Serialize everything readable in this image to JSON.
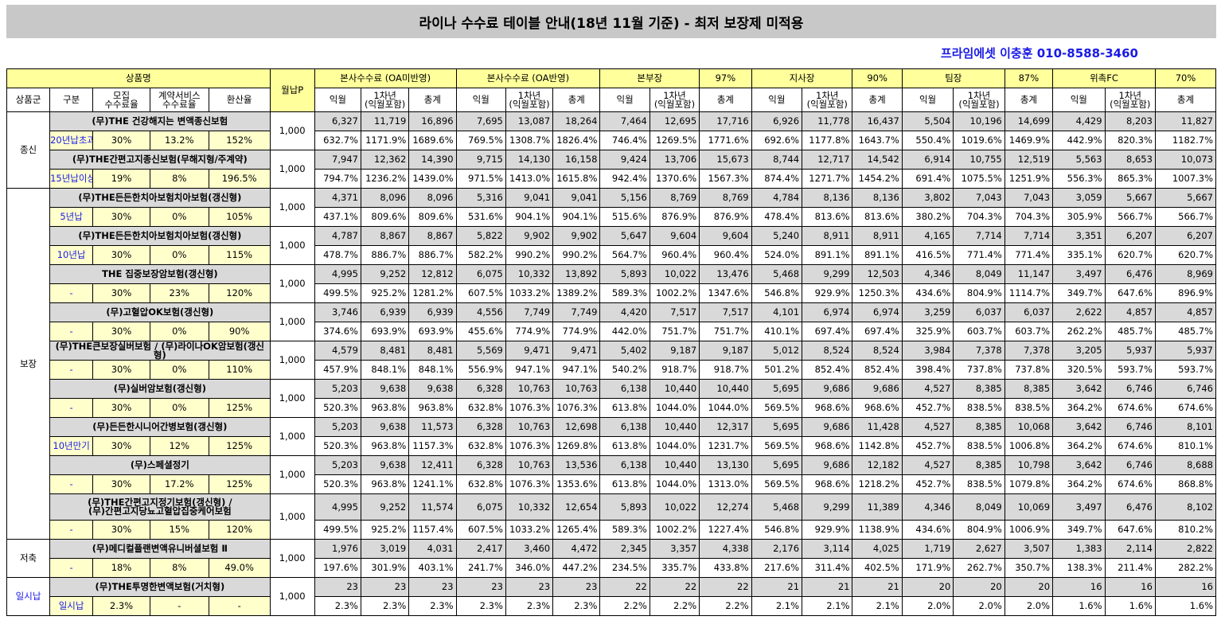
{
  "title": "라이나 수수료 테이블 안내(18년 11월 기준) - 최저 보장제 미적용",
  "contact": "프라임에셋 이충훈 010-8588-3460",
  "header": {
    "product": "상품명",
    "monthly": "월납P",
    "agents": [
      "본사수수료 (OA미반영)",
      "본사수수료 (OA반영)",
      "본부장",
      "지사장",
      "팀장",
      "위촉FC"
    ],
    "pcts": [
      "97%",
      "90%",
      "87%",
      "70%"
    ],
    "cols": [
      "상품군",
      "구분",
      "모집\n수수료율",
      "계약서비스\n수수료율",
      "환산율"
    ],
    "sub": [
      "익월",
      "1차년\n(익월포함)",
      "총계"
    ]
  },
  "groups": [
    {
      "name": "종신",
      "products": [
        {
          "name": "(무)THE 건강해지는 변액종신보험",
          "gubun": "20년납초과",
          "rate1": "30%",
          "rate2": "13.2%",
          "conv": "152%",
          "monthly": "1,000",
          "amounts": [
            "6,327",
            "11,719",
            "16,896",
            "7,695",
            "13,087",
            "18,264",
            "7,464",
            "12,695",
            "17,716",
            "6,926",
            "11,778",
            "16,437",
            "5,504",
            "10,196",
            "14,699",
            "4,429",
            "8,203",
            "11,827"
          ],
          "pcts": [
            "632.7%",
            "1171.9%",
            "1689.6%",
            "769.5%",
            "1308.7%",
            "1826.4%",
            "746.4%",
            "1269.5%",
            "1771.6%",
            "692.6%",
            "1177.8%",
            "1643.7%",
            "550.4%",
            "1019.6%",
            "1469.9%",
            "442.9%",
            "820.3%",
            "1182.7%"
          ]
        },
        {
          "name": "(무)THE간편고지종신보험(무해지형/주계약)",
          "gubun": "15년납이상",
          "rate1": "19%",
          "rate2": "8%",
          "conv": "196.5%",
          "monthly": "1,000",
          "amounts": [
            "7,947",
            "12,362",
            "14,390",
            "9,715",
            "14,130",
            "16,158",
            "9,424",
            "13,706",
            "15,673",
            "8,744",
            "12,717",
            "14,542",
            "6,914",
            "10,755",
            "12,519",
            "5,563",
            "8,653",
            "10,073"
          ],
          "pcts": [
            "794.7%",
            "1236.2%",
            "1439.0%",
            "971.5%",
            "1413.0%",
            "1615.8%",
            "942.4%",
            "1370.6%",
            "1567.3%",
            "874.4%",
            "1271.7%",
            "1454.2%",
            "691.4%",
            "1075.5%",
            "1251.9%",
            "556.3%",
            "865.3%",
            "1007.3%"
          ]
        }
      ]
    },
    {
      "name": "보장",
      "products": [
        {
          "name": "(무)THE든든한치아보험치아보험(갱신형)",
          "gubun": "5년납",
          "rate1": "30%",
          "rate2": "0%",
          "conv": "105%",
          "monthly": "1,000",
          "amounts": [
            "4,371",
            "8,096",
            "8,096",
            "5,316",
            "9,041",
            "9,041",
            "5,156",
            "8,769",
            "8,769",
            "4,784",
            "8,136",
            "8,136",
            "3,802",
            "7,043",
            "7,043",
            "3,059",
            "5,667",
            "5,667"
          ],
          "pcts": [
            "437.1%",
            "809.6%",
            "809.6%",
            "531.6%",
            "904.1%",
            "904.1%",
            "515.6%",
            "876.9%",
            "876.9%",
            "478.4%",
            "813.6%",
            "813.6%",
            "380.2%",
            "704.3%",
            "704.3%",
            "305.9%",
            "566.7%",
            "566.7%"
          ]
        },
        {
          "name": "(무)THE든든한치아보험치아보험(갱신형)",
          "gubun": "10년납",
          "rate1": "30%",
          "rate2": "0%",
          "conv": "115%",
          "monthly": "1,000",
          "amounts": [
            "4,787",
            "8,867",
            "8,867",
            "5,822",
            "9,902",
            "9,902",
            "5,647",
            "9,604",
            "9,604",
            "5,240",
            "8,911",
            "8,911",
            "4,165",
            "7,714",
            "7,714",
            "3,351",
            "6,207",
            "6,207"
          ],
          "pcts": [
            "478.7%",
            "886.7%",
            "886.7%",
            "582.2%",
            "990.2%",
            "990.2%",
            "564.7%",
            "960.4%",
            "960.4%",
            "524.0%",
            "891.1%",
            "891.1%",
            "416.5%",
            "771.4%",
            "771.4%",
            "335.1%",
            "620.7%",
            "620.7%"
          ]
        },
        {
          "name": "THE 집중보장암보험(갱신형)",
          "gubun": "-",
          "rate1": "30%",
          "rate2": "23%",
          "conv": "120%",
          "monthly": "1,000",
          "amounts": [
            "4,995",
            "9,252",
            "12,812",
            "6,075",
            "10,332",
            "13,892",
            "5,893",
            "10,022",
            "13,476",
            "5,468",
            "9,299",
            "12,503",
            "4,346",
            "8,049",
            "11,147",
            "3,497",
            "6,476",
            "8,969"
          ],
          "pcts": [
            "499.5%",
            "925.2%",
            "1281.2%",
            "607.5%",
            "1033.2%",
            "1389.2%",
            "589.3%",
            "1002.2%",
            "1347.6%",
            "546.8%",
            "929.9%",
            "1250.3%",
            "434.6%",
            "804.9%",
            "1114.7%",
            "349.7%",
            "647.6%",
            "896.9%"
          ]
        },
        {
          "name": "(무)고혈압OK보험(갱신형)",
          "gubun": "-",
          "rate1": "30%",
          "rate2": "0%",
          "conv": "90%",
          "monthly": "1,000",
          "amounts": [
            "3,746",
            "6,939",
            "6,939",
            "4,556",
            "7,749",
            "7,749",
            "4,420",
            "7,517",
            "7,517",
            "4,101",
            "6,974",
            "6,974",
            "3,259",
            "6,037",
            "6,037",
            "2,622",
            "4,857",
            "4,857"
          ],
          "pcts": [
            "374.6%",
            "693.9%",
            "693.9%",
            "455.6%",
            "774.9%",
            "774.9%",
            "442.0%",
            "751.7%",
            "751.7%",
            "410.1%",
            "697.4%",
            "697.4%",
            "325.9%",
            "603.7%",
            "603.7%",
            "262.2%",
            "485.7%",
            "485.7%"
          ]
        },
        {
          "name": "(무)THE큰보장실버보험 / (무)라이나OK암보험(갱신형)",
          "gubun": "-",
          "rate1": "30%",
          "rate2": "0%",
          "conv": "110%",
          "monthly": "1,000",
          "amounts": [
            "4,579",
            "8,481",
            "8,481",
            "5,569",
            "9,471",
            "9,471",
            "5,402",
            "9,187",
            "9,187",
            "5,012",
            "8,524",
            "8,524",
            "3,984",
            "7,378",
            "7,378",
            "3,205",
            "5,937",
            "5,937"
          ],
          "pcts": [
            "457.9%",
            "848.1%",
            "848.1%",
            "556.9%",
            "947.1%",
            "947.1%",
            "540.2%",
            "918.7%",
            "918.7%",
            "501.2%",
            "852.4%",
            "852.4%",
            "398.4%",
            "737.8%",
            "737.8%",
            "320.5%",
            "593.7%",
            "593.7%"
          ]
        },
        {
          "name": "(무)실버암보험(갱신형)",
          "gubun": "-",
          "rate1": "30%",
          "rate2": "0%",
          "conv": "125%",
          "monthly": "1,000",
          "amounts": [
            "5,203",
            "9,638",
            "9,638",
            "6,328",
            "10,763",
            "10,763",
            "6,138",
            "10,440",
            "10,440",
            "5,695",
            "9,686",
            "9,686",
            "4,527",
            "8,385",
            "8,385",
            "3,642",
            "6,746",
            "6,746"
          ],
          "pcts": [
            "520.3%",
            "963.8%",
            "963.8%",
            "632.8%",
            "1076.3%",
            "1076.3%",
            "613.8%",
            "1044.0%",
            "1044.0%",
            "569.5%",
            "968.6%",
            "968.6%",
            "452.7%",
            "838.5%",
            "838.5%",
            "364.2%",
            "674.6%",
            "674.6%"
          ]
        },
        {
          "name": "(무)든든한시니어간병보험(갱신형)",
          "gubun": "10년만기",
          "rate1": "30%",
          "rate2": "12%",
          "conv": "125%",
          "monthly": "1,000",
          "amounts": [
            "5,203",
            "9,638",
            "11,573",
            "6,328",
            "10,763",
            "12,698",
            "6,138",
            "10,440",
            "12,317",
            "5,695",
            "9,686",
            "11,428",
            "4,527",
            "8,385",
            "10,068",
            "3,642",
            "6,746",
            "8,101"
          ],
          "pcts": [
            "520.3%",
            "963.8%",
            "1157.3%",
            "632.8%",
            "1076.3%",
            "1269.8%",
            "613.8%",
            "1044.0%",
            "1231.7%",
            "569.5%",
            "968.6%",
            "1142.8%",
            "452.7%",
            "838.5%",
            "1006.8%",
            "364.2%",
            "674.6%",
            "810.1%"
          ]
        },
        {
          "name": "(무)스페셜정기",
          "gubun": "-",
          "rate1": "30%",
          "rate2": "17.2%",
          "conv": "125%",
          "monthly": "1,000",
          "amounts": [
            "5,203",
            "9,638",
            "12,411",
            "6,328",
            "10,763",
            "13,536",
            "6,138",
            "10,440",
            "13,130",
            "5,695",
            "9,686",
            "12,182",
            "4,527",
            "8,385",
            "10,798",
            "3,642",
            "6,746",
            "8,688"
          ],
          "pcts": [
            "520.3%",
            "963.8%",
            "1241.1%",
            "632.8%",
            "1076.3%",
            "1353.6%",
            "613.8%",
            "1044.0%",
            "1313.0%",
            "569.5%",
            "968.6%",
            "1218.2%",
            "452.7%",
            "838.5%",
            "1079.8%",
            "364.2%",
            "674.6%",
            "868.8%"
          ]
        },
        {
          "name": "(무)THE간편고지정기보험(갱신형) /\n(무)간편고지당뇨고혈압집중케어보험",
          "gubun": "-",
          "rate1": "30%",
          "rate2": "15%",
          "conv": "120%",
          "monthly": "1,000",
          "amounts": [
            "4,995",
            "9,252",
            "11,574",
            "6,075",
            "10,332",
            "12,654",
            "5,893",
            "10,022",
            "12,274",
            "5,468",
            "9,299",
            "11,389",
            "4,346",
            "8,049",
            "10,069",
            "3,497",
            "6,476",
            "8,102"
          ],
          "pcts": [
            "499.5%",
            "925.2%",
            "1157.4%",
            "607.5%",
            "1033.2%",
            "1265.4%",
            "589.3%",
            "1002.2%",
            "1227.4%",
            "546.8%",
            "929.9%",
            "1138.9%",
            "434.6%",
            "804.9%",
            "1006.9%",
            "349.7%",
            "647.6%",
            "810.2%"
          ]
        }
      ]
    },
    {
      "name": "저축",
      "products": [
        {
          "name": "(무)메디컬플랜변액유니버셜보험 Ⅱ",
          "gubun": "-",
          "rate1": "18%",
          "rate2": "8%",
          "conv": "49.0%",
          "monthly": "1,000",
          "amounts": [
            "1,976",
            "3,019",
            "4,031",
            "2,417",
            "3,460",
            "4,472",
            "2,345",
            "3,357",
            "4,338",
            "2,176",
            "3,114",
            "4,025",
            "1,719",
            "2,627",
            "3,507",
            "1,383",
            "2,114",
            "2,822"
          ],
          "pcts": [
            "197.6%",
            "301.9%",
            "403.1%",
            "241.7%",
            "346.0%",
            "447.2%",
            "234.5%",
            "335.7%",
            "433.8%",
            "217.6%",
            "311.4%",
            "402.5%",
            "171.9%",
            "262.7%",
            "350.7%",
            "138.3%",
            "211.4%",
            "282.2%"
          ]
        }
      ]
    },
    {
      "name": "일시납",
      "products": [
        {
          "name": "(무)THE투명한변액보험(거치형)",
          "gubun": "일시납",
          "rate1": "2.3%",
          "rate2": "-",
          "conv": "-",
          "monthly": "1,000",
          "amounts": [
            "23",
            "23",
            "23",
            "23",
            "23",
            "23",
            "22",
            "22",
            "22",
            "21",
            "21",
            "21",
            "20",
            "20",
            "20",
            "16",
            "16",
            "16"
          ],
          "pcts": [
            "2.3%",
            "2.3%",
            "2.3%",
            "2.3%",
            "2.3%",
            "2.3%",
            "2.2%",
            "2.2%",
            "2.2%",
            "2.1%",
            "2.1%",
            "2.1%",
            "2.0%",
            "2.0%",
            "2.0%",
            "1.6%",
            "1.6%",
            "1.6%"
          ]
        }
      ]
    }
  ]
}
